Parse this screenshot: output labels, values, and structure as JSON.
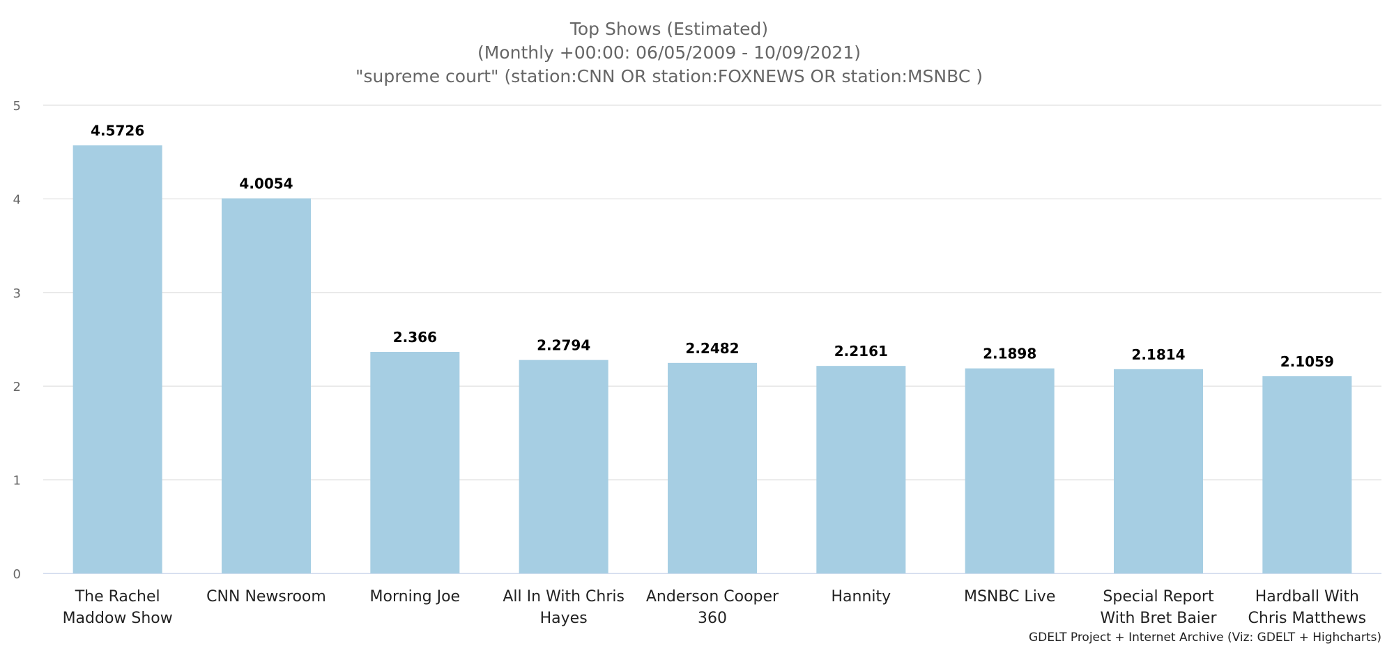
{
  "chart_data": {
    "type": "bar",
    "title": "Top Shows (Estimated)",
    "subtitle_lines": [
      "(Monthly +00:00: 06/05/2009 - 10/09/2021)",
      "\"supreme court\" (station:CNN OR station:FOXNEWS OR station:MSNBC )"
    ],
    "categories": [
      "The Rachel Maddow Show",
      "CNN Newsroom",
      "Morning Joe",
      "All In With Chris Hayes",
      "Anderson Cooper 360",
      "Hannity",
      "MSNBC Live",
      "Special Report With Bret Baier",
      "Hardball With Chris Matthews"
    ],
    "category_label_lines": [
      [
        "The Rachel",
        "Maddow Show"
      ],
      [
        "CNN Newsroom"
      ],
      [
        "Morning Joe"
      ],
      [
        "All In With Chris",
        "Hayes"
      ],
      [
        "Anderson Cooper",
        "360"
      ],
      [
        "Hannity"
      ],
      [
        "MSNBC Live"
      ],
      [
        "Special Report",
        "With Bret Baier"
      ],
      [
        "Hardball With",
        "Chris Matthews"
      ]
    ],
    "values": [
      4.5726,
      4.0054,
      2.366,
      2.2794,
      2.2482,
      2.2161,
      2.1898,
      2.1814,
      2.1059
    ],
    "data_labels": [
      "4.5726",
      "4.0054",
      "2.366",
      "2.2794",
      "2.2482",
      "2.2161",
      "2.1898",
      "2.1814",
      "2.1059"
    ],
    "ylim": [
      0,
      5
    ],
    "yticks": [
      "0",
      "1",
      "2",
      "3",
      "4",
      "5"
    ],
    "xlabel": "",
    "ylabel": "",
    "grid": true,
    "legend": false,
    "bar_color": "#a6cee3",
    "grid_color": "#e6e6e6",
    "credit": "GDELT Project + Internet Archive (Viz: GDELT + Highcharts)"
  }
}
